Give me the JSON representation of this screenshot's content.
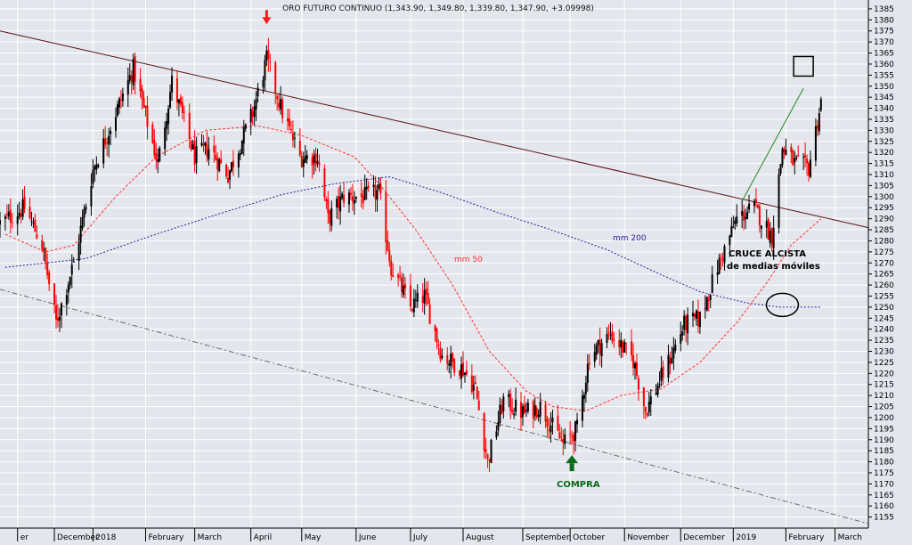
{
  "colors": {
    "background": "#e4e6ed",
    "grid": "#ffffff",
    "candle_up": "#000000",
    "candle_down": "#ff0000",
    "ma50": "#ff3030",
    "ma200": "#2a1aa0",
    "trendline": "#5a0f0f",
    "lower_channel": "#6a6a6a",
    "buy_arrow": "#0a6b1a",
    "sell_arrow": "#ff1a1a",
    "target_line": "#1e8a1e"
  },
  "chart_data": {
    "type": "candlestick",
    "title": "ORO FUTURO CONTINUO (1,343.90, 1,349.80, 1,339.80, 1,347.90, +3.09998)",
    "y_axis_side": "right",
    "ylim": [
      1150,
      1389
    ],
    "y_ticks": [
      1155,
      1160,
      1165,
      1170,
      1175,
      1180,
      1185,
      1190,
      1195,
      1200,
      1205,
      1210,
      1215,
      1220,
      1225,
      1230,
      1235,
      1240,
      1245,
      1250,
      1255,
      1260,
      1265,
      1270,
      1275,
      1280,
      1285,
      1290,
      1295,
      1300,
      1305,
      1310,
      1315,
      1320,
      1325,
      1330,
      1335,
      1340,
      1345,
      1350,
      1355,
      1360,
      1365,
      1370,
      1375,
      1380,
      1385
    ],
    "x_range": [
      "2017-11-10",
      "2019-03-20"
    ],
    "x_labels": [
      {
        "date": "2017-11-20",
        "label": "er"
      },
      {
        "date": "2017-12-11",
        "label": "December"
      },
      {
        "date": "2018-01-02",
        "label": "2018"
      },
      {
        "date": "2018-02-01",
        "label": "February"
      },
      {
        "date": "2018-03-01",
        "label": "March"
      },
      {
        "date": "2018-04-02",
        "label": "April"
      },
      {
        "date": "2018-05-01",
        "label": "May"
      },
      {
        "date": "2018-06-01",
        "label": "June"
      },
      {
        "date": "2018-07-02",
        "label": "July"
      },
      {
        "date": "2018-08-01",
        "label": "August"
      },
      {
        "date": "2018-09-04",
        "label": "September"
      },
      {
        "date": "2018-10-01",
        "label": "October"
      },
      {
        "date": "2018-11-01",
        "label": "November"
      },
      {
        "date": "2018-12-03",
        "label": "December"
      },
      {
        "date": "2019-01-02",
        "label": "2019"
      },
      {
        "date": "2019-02-01",
        "label": "February"
      },
      {
        "date": "2019-03-01",
        "label": "March"
      }
    ],
    "close_path": [
      [
        "2017-11-10",
        1288
      ],
      [
        "2017-11-24",
        1295
      ],
      [
        "2017-12-04",
        1278
      ],
      [
        "2017-12-12",
        1243
      ],
      [
        "2017-12-22",
        1270
      ],
      [
        "2018-01-02",
        1312
      ],
      [
        "2018-01-12",
        1332
      ],
      [
        "2018-01-25",
        1358
      ],
      [
        "2018-02-08",
        1315
      ],
      [
        "2018-02-16",
        1352
      ],
      [
        "2018-03-01",
        1318
      ],
      [
        "2018-03-09",
        1322
      ],
      [
        "2018-03-20",
        1310
      ],
      [
        "2018-04-03",
        1338
      ],
      [
        "2018-04-11",
        1362
      ],
      [
        "2018-04-20",
        1338
      ],
      [
        "2018-04-30",
        1318
      ],
      [
        "2018-05-10",
        1318
      ],
      [
        "2018-05-16",
        1290
      ],
      [
        "2018-05-25",
        1300
      ],
      [
        "2018-06-06",
        1300
      ],
      [
        "2018-06-14",
        1302
      ],
      [
        "2018-06-21",
        1268
      ],
      [
        "2018-07-02",
        1250
      ],
      [
        "2018-07-10",
        1255
      ],
      [
        "2018-07-20",
        1228
      ],
      [
        "2018-08-01",
        1222
      ],
      [
        "2018-08-08",
        1213
      ],
      [
        "2018-08-15",
        1180
      ],
      [
        "2018-08-24",
        1208
      ],
      [
        "2018-09-04",
        1202
      ],
      [
        "2018-09-14",
        1205
      ],
      [
        "2018-09-27",
        1188
      ],
      [
        "2018-10-05",
        1195
      ],
      [
        "2018-10-12",
        1228
      ],
      [
        "2018-10-24",
        1238
      ],
      [
        "2018-11-06",
        1226
      ],
      [
        "2018-11-13",
        1203
      ],
      [
        "2018-11-26",
        1225
      ],
      [
        "2018-12-05",
        1242
      ],
      [
        "2018-12-14",
        1245
      ],
      [
        "2018-12-24",
        1268
      ],
      [
        "2019-01-04",
        1290
      ],
      [
        "2019-01-14",
        1295
      ],
      [
        "2019-01-24",
        1282
      ],
      [
        "2019-01-30",
        1322
      ],
      [
        "2019-02-06",
        1315
      ],
      [
        "2019-02-14",
        1313
      ],
      [
        "2019-02-21",
        1343
      ]
    ],
    "ma50": [
      [
        "2017-11-13",
        1283
      ],
      [
        "2017-12-06",
        1275
      ],
      [
        "2017-12-22",
        1278
      ],
      [
        "2018-01-15",
        1300
      ],
      [
        "2018-02-07",
        1318
      ],
      [
        "2018-03-07",
        1330
      ],
      [
        "2018-04-06",
        1332
      ],
      [
        "2018-04-30",
        1328
      ],
      [
        "2018-05-31",
        1318
      ],
      [
        "2018-06-15",
        1305
      ],
      [
        "2018-07-05",
        1285
      ],
      [
        "2018-07-26",
        1260
      ],
      [
        "2018-08-16",
        1230
      ],
      [
        "2018-09-06",
        1212
      ],
      [
        "2018-09-21",
        1205
      ],
      [
        "2018-10-10",
        1203
      ],
      [
        "2018-10-30",
        1210
      ],
      [
        "2018-11-22",
        1213
      ],
      [
        "2018-12-14",
        1225
      ],
      [
        "2019-01-04",
        1243
      ],
      [
        "2019-01-22",
        1262
      ],
      [
        "2019-02-04",
        1278
      ],
      [
        "2019-02-21",
        1290
      ]
    ],
    "ma200": [
      [
        "2017-11-13",
        1268
      ],
      [
        "2017-12-29",
        1272
      ],
      [
        "2018-02-07",
        1283
      ],
      [
        "2018-03-14",
        1292
      ],
      [
        "2018-04-20",
        1301
      ],
      [
        "2018-05-21",
        1306
      ],
      [
        "2018-06-20",
        1309
      ],
      [
        "2018-07-19",
        1302
      ],
      [
        "2018-08-20",
        1293
      ],
      [
        "2018-09-20",
        1285
      ],
      [
        "2018-10-22",
        1276
      ],
      [
        "2018-11-21",
        1265
      ],
      [
        "2018-12-14",
        1257
      ],
      [
        "2019-01-09",
        1252
      ],
      [
        "2019-01-28",
        1250
      ],
      [
        "2019-02-21",
        1250
      ]
    ],
    "trendline": [
      [
        "2017-11-10",
        1375
      ],
      [
        "2019-03-20",
        1286
      ]
    ],
    "lower_channel": [
      [
        "2017-11-10",
        1258
      ],
      [
        "2019-03-20",
        1152
      ]
    ],
    "target_line": [
      [
        "2019-01-07",
        1298
      ],
      [
        "2019-02-11",
        1349
      ]
    ],
    "annotations": {
      "ma50_label": "mm 50",
      "ma200_label": "mm 200",
      "cross_line1": "CRUCE ALCISTA",
      "cross_line2": "de medias móviles",
      "buy_label": "COMPRA"
    }
  }
}
